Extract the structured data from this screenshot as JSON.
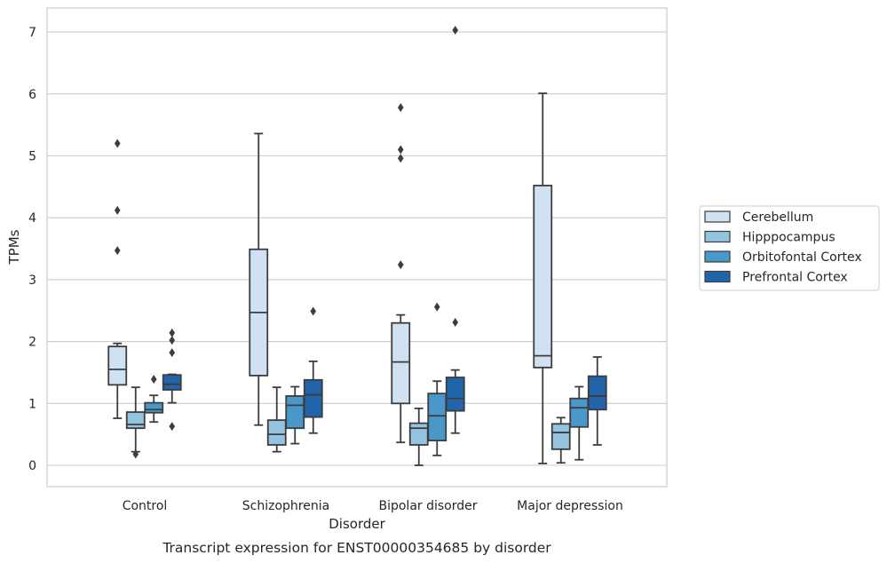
{
  "caption": "Transcript expression for ENST00000354685 by disorder",
  "chart_data": {
    "type": "box",
    "xlabel": "Disorder",
    "ylabel": "TPMs",
    "ylim": [
      -0.35,
      7.4
    ],
    "yticks": [
      0,
      1,
      2,
      3,
      4,
      5,
      6,
      7
    ],
    "grid": "horizontal",
    "legend_position": "right",
    "categories": [
      "Control",
      "Schizophrenia",
      "Bipolar disorder",
      "Major depression"
    ],
    "series": [
      {
        "name": "Cerebellum",
        "color": "#d0e1f2",
        "boxes": [
          {
            "whislo": 0.76,
            "q1": 1.3,
            "med": 1.55,
            "q3": 1.92,
            "whishi": 1.97,
            "fliers": [
              3.47,
              4.12,
              5.2
            ]
          },
          {
            "whislo": 0.65,
            "q1": 1.45,
            "med": 2.47,
            "q3": 3.49,
            "whishi": 5.36,
            "fliers": []
          },
          {
            "whislo": 0.37,
            "q1": 1.0,
            "med": 1.67,
            "q3": 2.3,
            "whishi": 2.43,
            "fliers": [
              3.24,
              4.96,
              5.1,
              5.78
            ]
          },
          {
            "whislo": 0.03,
            "q1": 1.58,
            "med": 1.77,
            "q3": 4.52,
            "whishi": 6.01,
            "fliers": []
          }
        ]
      },
      {
        "name": "Hipppocampus",
        "color": "#94c4df",
        "boxes": [
          {
            "whislo": 0.22,
            "q1": 0.6,
            "med": 0.66,
            "q3": 0.86,
            "whishi": 1.26,
            "fliers": [
              0.18
            ]
          },
          {
            "whislo": 0.22,
            "q1": 0.33,
            "med": 0.5,
            "q3": 0.73,
            "whishi": 1.26,
            "fliers": []
          },
          {
            "whislo": 0.0,
            "q1": 0.33,
            "med": 0.6,
            "q3": 0.68,
            "whishi": 0.92,
            "fliers": []
          },
          {
            "whislo": 0.04,
            "q1": 0.26,
            "med": 0.53,
            "q3": 0.67,
            "whishi": 0.77,
            "fliers": []
          }
        ]
      },
      {
        "name": "Orbitofontal Cortex",
        "color": "#4a98c9",
        "boxes": [
          {
            "whislo": 0.7,
            "q1": 0.85,
            "med": 0.9,
            "q3": 1.01,
            "whishi": 1.13,
            "fliers": [
              1.39
            ]
          },
          {
            "whislo": 0.35,
            "q1": 0.6,
            "med": 0.97,
            "q3": 1.12,
            "whishi": 1.27,
            "fliers": []
          },
          {
            "whislo": 0.16,
            "q1": 0.4,
            "med": 0.8,
            "q3": 1.16,
            "whishi": 1.36,
            "fliers": [
              2.56
            ]
          },
          {
            "whislo": 0.09,
            "q1": 0.62,
            "med": 0.93,
            "q3": 1.08,
            "whishi": 1.27,
            "fliers": []
          }
        ]
      },
      {
        "name": "Prefrontal Cortex",
        "color": "#2264aa",
        "boxes": [
          {
            "whislo": 1.01,
            "q1": 1.22,
            "med": 1.31,
            "q3": 1.46,
            "whishi": 1.47,
            "fliers": [
              0.63,
              1.82,
              2.02,
              2.14
            ]
          },
          {
            "whislo": 0.52,
            "q1": 0.78,
            "med": 1.14,
            "q3": 1.38,
            "whishi": 1.68,
            "fliers": [
              2.49
            ]
          },
          {
            "whislo": 0.52,
            "q1": 0.88,
            "med": 1.08,
            "q3": 1.42,
            "whishi": 1.54,
            "fliers": [
              2.31,
              7.03
            ]
          },
          {
            "whislo": 0.33,
            "q1": 0.9,
            "med": 1.12,
            "q3": 1.44,
            "whishi": 1.75,
            "fliers": []
          }
        ]
      }
    ]
  }
}
